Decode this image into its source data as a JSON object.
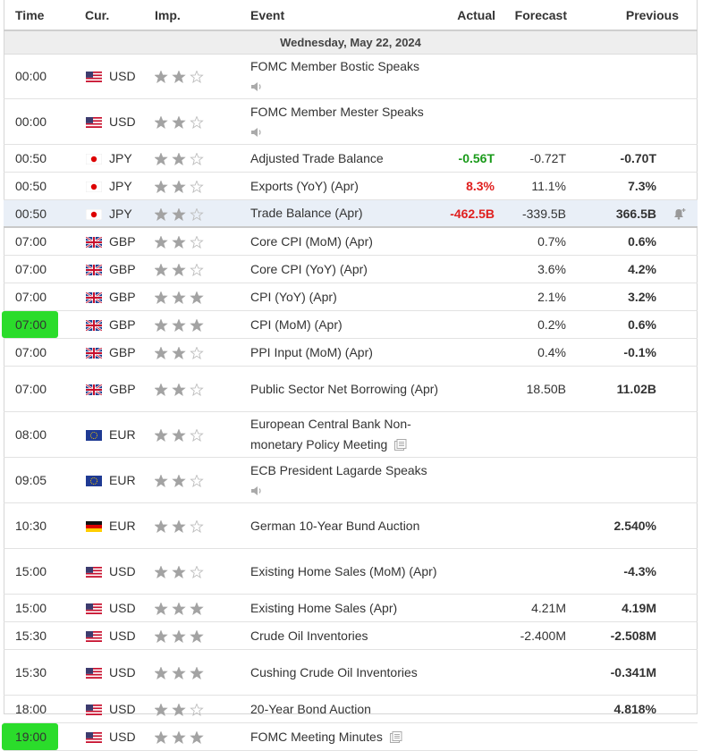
{
  "header": {
    "columns": [
      "Time",
      "Cur.",
      "Imp.",
      "Event",
      "Actual",
      "Forecast",
      "Previous"
    ]
  },
  "date": "Wednesday, May 22, 2024",
  "rows": [
    {
      "time": "00:00",
      "currency": "USD",
      "importance": 2,
      "event": "FOMC Member Bostic Speaks",
      "icon": "speech"
    },
    {
      "time": "00:00",
      "currency": "USD",
      "importance": 2,
      "event": "FOMC Member Mester Speaks",
      "icon": "speech"
    },
    {
      "time": "00:50",
      "currency": "JPY",
      "importance": 2,
      "event": "Adjusted Trade Balance",
      "actual": "-0.56T",
      "actual_color": "#1a9a1a",
      "forecast": "-0.72T",
      "previous": "-0.70T"
    },
    {
      "time": "00:50",
      "currency": "JPY",
      "importance": 2,
      "event": "Exports (YoY) (Apr)",
      "actual": "8.3%",
      "actual_color": "#e0201f",
      "forecast": "11.1%",
      "previous": "7.3%"
    },
    {
      "time": "00:50",
      "currency": "JPY",
      "importance": 2,
      "event": "Trade Balance (Apr)",
      "actual": "-462.5B",
      "actual_color": "#e0201f",
      "forecast": "-339.5B",
      "previous": "366.5B",
      "hover": true
    },
    {
      "time": "07:00",
      "currency": "GBP",
      "importance": 2,
      "event": "Core CPI (MoM) (Apr)",
      "forecast": "0.7%",
      "previous": "0.6%"
    },
    {
      "time": "07:00",
      "currency": "GBP",
      "importance": 2,
      "event": "Core CPI (YoY) (Apr)",
      "forecast": "3.6%",
      "previous": "4.2%"
    },
    {
      "time": "07:00",
      "currency": "GBP",
      "importance": 3,
      "event": "CPI (YoY) (Apr)",
      "forecast": "2.1%",
      "previous": "3.2%"
    },
    {
      "time": "07:00",
      "currency": "GBP",
      "importance": 3,
      "event": "CPI (MoM) (Apr)",
      "forecast": "0.2%",
      "previous": "0.6%",
      "highlight": true
    },
    {
      "time": "07:00",
      "currency": "GBP",
      "importance": 2,
      "event": "PPI Input (MoM) (Apr)",
      "forecast": "0.4%",
      "previous": "-0.1%"
    },
    {
      "time": "07:00",
      "currency": "GBP",
      "importance": 2,
      "event": "Public Sector Net Borrowing (Apr)",
      "forecast": "18.50B",
      "previous": "11.02B"
    },
    {
      "time": "08:00",
      "currency": "EUR",
      "importance": 2,
      "event": "European Central Bank Non-monetary Policy Meeting",
      "icon": "report"
    },
    {
      "time": "09:05",
      "currency": "EUR",
      "importance": 2,
      "event": "ECB President Lagarde Speaks",
      "icon": "speech"
    },
    {
      "time": "10:30",
      "currency": "EUR",
      "flag": "DE",
      "importance": 2,
      "event": "German 10-Year Bund Auction",
      "previous": "2.540%"
    },
    {
      "time": "15:00",
      "currency": "USD",
      "importance": 2,
      "event": "Existing Home Sales (MoM) (Apr)",
      "previous": "-4.3%"
    },
    {
      "time": "15:00",
      "currency": "USD",
      "importance": 3,
      "event": "Existing Home Sales (Apr)",
      "forecast": "4.21M",
      "previous": "4.19M"
    },
    {
      "time": "15:30",
      "currency": "USD",
      "importance": 3,
      "event": "Crude Oil Inventories",
      "forecast": "-2.400M",
      "previous": "-2.508M"
    },
    {
      "time": "15:30",
      "currency": "USD",
      "importance": 3,
      "event": "Cushing Crude Oil Inventories",
      "previous": "-0.341M"
    },
    {
      "time": "18:00",
      "currency": "USD",
      "importance": 2,
      "event": "20-Year Bond Auction",
      "previous": "4.818%"
    },
    {
      "time": "19:00",
      "currency": "USD",
      "importance": 3,
      "event": "FOMC Meeting Minutes",
      "icon": "report",
      "highlight": true
    }
  ]
}
